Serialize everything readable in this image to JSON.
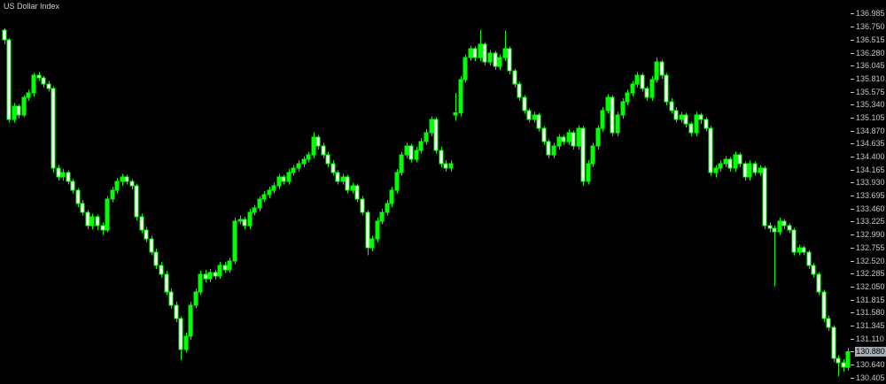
{
  "title": {
    "text": "US Dollar Index"
  },
  "colors": {
    "background": "#000000",
    "bull_candle": "#00FF00",
    "bear_candle": "#FFFFFF",
    "wick": "#00FF00",
    "axis_text": "#c6c6c6",
    "current_price_box_bg": "#a8aeb5",
    "current_price_box_text": "#000000"
  },
  "price_axis": {
    "labels": [
      "136.985",
      "136.750",
      "136.515",
      "136.280",
      "136.045",
      "135.810",
      "135.575",
      "135.340",
      "135.105",
      "134.870",
      "134.635",
      "134.400",
      "134.165",
      "133.930",
      "133.695",
      "133.460",
      "133.225",
      "132.990",
      "132.755",
      "132.520",
      "132.285",
      "132.050",
      "131.815",
      "131.580",
      "131.345",
      "131.110",
      "130.875",
      "130.640",
      "130.405"
    ],
    "current_price": "130.880"
  },
  "chart_data": {
    "type": "candlestick",
    "title": "US Dollar Index",
    "xlabel": "",
    "ylabel": "",
    "grid": false,
    "legend": false,
    "ylim": [
      130.296,
      137.24
    ],
    "up_color": "#00FF00",
    "down_color": "#FFFFFF",
    "candles": [
      [
        136.7,
        136.73,
        136.44,
        136.52
      ],
      [
        136.52,
        136.55,
        135.02,
        135.08
      ],
      [
        135.08,
        135.38,
        135.02,
        135.32
      ],
      [
        135.32,
        135.36,
        135.1,
        135.16
      ],
      [
        135.16,
        135.52,
        135.12,
        135.48
      ],
      [
        135.48,
        135.62,
        135.42,
        135.56
      ],
      [
        135.56,
        135.92,
        135.5,
        135.88
      ],
      [
        135.88,
        135.94,
        135.78,
        135.83
      ],
      [
        135.83,
        135.86,
        135.66,
        135.72
      ],
      [
        135.72,
        135.78,
        135.58,
        135.64
      ],
      [
        135.64,
        135.68,
        134.12,
        134.2
      ],
      [
        134.2,
        134.26,
        133.98,
        134.04
      ],
      [
        134.04,
        134.18,
        133.97,
        134.12
      ],
      [
        134.12,
        134.16,
        133.9,
        133.96
      ],
      [
        133.96,
        134.0,
        133.74,
        133.8
      ],
      [
        133.8,
        133.84,
        133.5,
        133.56
      ],
      [
        133.56,
        133.62,
        133.34,
        133.4
      ],
      [
        133.4,
        133.45,
        133.1,
        133.16
      ],
      [
        133.16,
        133.38,
        133.1,
        133.32
      ],
      [
        133.32,
        133.36,
        133.08,
        133.16
      ],
      [
        133.16,
        133.22,
        133.0,
        133.08
      ],
      [
        133.08,
        133.7,
        133.04,
        133.64
      ],
      [
        133.64,
        133.86,
        133.58,
        133.8
      ],
      [
        133.8,
        134.02,
        133.74,
        133.96
      ],
      [
        133.96,
        134.1,
        133.88,
        134.04
      ],
      [
        134.04,
        134.08,
        133.9,
        133.96
      ],
      [
        133.96,
        134.0,
        133.82,
        133.88
      ],
      [
        133.88,
        133.92,
        133.26,
        133.32
      ],
      [
        133.32,
        133.38,
        133.02,
        133.08
      ],
      [
        133.08,
        133.14,
        132.86,
        132.92
      ],
      [
        132.92,
        132.98,
        132.62,
        132.68
      ],
      [
        132.68,
        132.74,
        132.38,
        132.44
      ],
      [
        132.44,
        132.5,
        132.22,
        132.28
      ],
      [
        132.28,
        132.34,
        131.9,
        131.96
      ],
      [
        131.96,
        132.02,
        131.66,
        131.72
      ],
      [
        131.72,
        131.78,
        131.42,
        131.48
      ],
      [
        131.48,
        131.52,
        130.73,
        130.92
      ],
      [
        130.92,
        131.22,
        130.86,
        131.16
      ],
      [
        131.16,
        131.78,
        131.1,
        131.72
      ],
      [
        131.72,
        132.02,
        131.66,
        131.96
      ],
      [
        131.96,
        132.34,
        131.9,
        132.28
      ],
      [
        132.28,
        132.36,
        132.14,
        132.2
      ],
      [
        132.2,
        132.38,
        132.14,
        132.31
      ],
      [
        132.31,
        132.36,
        132.18,
        132.25
      ],
      [
        132.25,
        132.5,
        132.2,
        132.44
      ],
      [
        132.44,
        132.5,
        132.3,
        132.36
      ],
      [
        132.36,
        132.58,
        132.3,
        132.52
      ],
      [
        132.52,
        133.3,
        132.46,
        133.24
      ],
      [
        133.24,
        133.34,
        133.18,
        133.27
      ],
      [
        133.27,
        133.32,
        133.1,
        133.16
      ],
      [
        133.16,
        133.46,
        133.1,
        133.4
      ],
      [
        133.4,
        133.54,
        133.34,
        133.48
      ],
      [
        133.48,
        133.7,
        133.42,
        133.64
      ],
      [
        133.64,
        133.78,
        133.58,
        133.72
      ],
      [
        133.72,
        133.86,
        133.66,
        133.8
      ],
      [
        133.8,
        133.94,
        133.74,
        133.88
      ],
      [
        133.88,
        134.1,
        133.82,
        134.04
      ],
      [
        134.04,
        134.08,
        133.9,
        133.96
      ],
      [
        133.96,
        134.18,
        133.9,
        134.12
      ],
      [
        134.12,
        134.26,
        134.06,
        134.2
      ],
      [
        134.2,
        134.34,
        134.14,
        134.28
      ],
      [
        134.28,
        134.42,
        134.22,
        134.36
      ],
      [
        134.36,
        134.5,
        134.3,
        134.44
      ],
      [
        134.44,
        134.85,
        134.38,
        134.76
      ],
      [
        134.76,
        134.8,
        134.54,
        134.6
      ],
      [
        134.6,
        134.66,
        134.38,
        134.44
      ],
      [
        134.44,
        134.5,
        134.22,
        134.28
      ],
      [
        134.28,
        134.34,
        134.06,
        134.12
      ],
      [
        134.12,
        134.16,
        133.9,
        133.96
      ],
      [
        133.96,
        134.1,
        133.9,
        134.04
      ],
      [
        134.04,
        134.08,
        133.74,
        133.8
      ],
      [
        133.8,
        133.94,
        133.74,
        133.88
      ],
      [
        133.88,
        133.92,
        133.58,
        133.64
      ],
      [
        133.64,
        133.7,
        133.34,
        133.4
      ],
      [
        133.4,
        133.44,
        132.62,
        132.76
      ],
      [
        132.76,
        132.98,
        132.7,
        132.92
      ],
      [
        132.92,
        133.3,
        132.86,
        133.24
      ],
      [
        133.24,
        133.46,
        133.18,
        133.4
      ],
      [
        133.4,
        133.62,
        133.34,
        133.56
      ],
      [
        133.56,
        133.86,
        133.5,
        133.8
      ],
      [
        133.8,
        134.18,
        133.74,
        134.12
      ],
      [
        134.12,
        134.5,
        134.06,
        134.44
      ],
      [
        134.44,
        134.66,
        134.38,
        134.6
      ],
      [
        134.6,
        134.64,
        134.3,
        134.36
      ],
      [
        134.36,
        134.58,
        134.3,
        134.52
      ],
      [
        134.52,
        134.74,
        134.46,
        134.68
      ],
      [
        134.68,
        134.9,
        134.62,
        134.84
      ],
      [
        134.84,
        135.14,
        134.78,
        135.08
      ],
      [
        135.08,
        135.12,
        134.46,
        134.52
      ],
      [
        134.52,
        134.58,
        134.22,
        134.28
      ],
      [
        134.28,
        134.34,
        134.14,
        134.2
      ],
      [
        134.2,
        134.34,
        134.14,
        134.28
      ],
      [
        135.16,
        135.56,
        135.06,
        135.2
      ],
      [
        135.2,
        135.86,
        135.14,
        135.8
      ],
      [
        135.8,
        136.26,
        135.74,
        136.2
      ],
      [
        136.2,
        136.42,
        136.14,
        136.36
      ],
      [
        136.36,
        136.4,
        136.14,
        136.2
      ],
      [
        136.2,
        136.7,
        136.14,
        136.44
      ],
      [
        136.44,
        136.48,
        136.06,
        136.12
      ],
      [
        136.12,
        136.34,
        136.06,
        136.28
      ],
      [
        136.28,
        136.32,
        135.98,
        136.04
      ],
      [
        136.04,
        136.26,
        135.98,
        136.2
      ],
      [
        136.2,
        136.68,
        136.14,
        136.36
      ],
      [
        136.36,
        136.4,
        135.9,
        135.96
      ],
      [
        135.96,
        136.0,
        135.66,
        135.72
      ],
      [
        135.72,
        135.76,
        135.42,
        135.48
      ],
      [
        135.48,
        135.52,
        135.18,
        135.24
      ],
      [
        135.24,
        135.28,
        135.02,
        135.08
      ],
      [
        135.08,
        135.22,
        135.02,
        135.16
      ],
      [
        135.16,
        135.2,
        134.86,
        134.92
      ],
      [
        134.92,
        134.96,
        134.62,
        134.68
      ],
      [
        134.68,
        134.72,
        134.38,
        134.44
      ],
      [
        134.44,
        134.66,
        134.38,
        134.6
      ],
      [
        134.6,
        134.82,
        134.54,
        134.76
      ],
      [
        134.76,
        134.8,
        134.62,
        134.68
      ],
      [
        134.68,
        134.9,
        134.62,
        134.84
      ],
      [
        134.84,
        134.88,
        134.54,
        134.6
      ],
      [
        134.6,
        134.98,
        134.54,
        134.92
      ],
      [
        134.92,
        134.96,
        133.88,
        133.96
      ],
      [
        133.96,
        134.34,
        133.9,
        134.28
      ],
      [
        134.28,
        134.66,
        134.22,
        134.6
      ],
      [
        134.6,
        134.98,
        134.54,
        134.92
      ],
      [
        134.92,
        135.3,
        134.86,
        135.24
      ],
      [
        135.24,
        135.54,
        135.18,
        135.48
      ],
      [
        135.48,
        135.52,
        134.78,
        134.84
      ],
      [
        134.84,
        135.22,
        134.78,
        135.16
      ],
      [
        135.16,
        135.46,
        135.1,
        135.4
      ],
      [
        135.4,
        135.62,
        135.34,
        135.56
      ],
      [
        135.56,
        135.78,
        135.5,
        135.72
      ],
      [
        135.72,
        135.94,
        135.66,
        135.88
      ],
      [
        135.88,
        135.92,
        135.58,
        135.64
      ],
      [
        135.64,
        135.68,
        135.42,
        135.48
      ],
      [
        135.48,
        135.86,
        135.42,
        135.8
      ],
      [
        135.8,
        136.2,
        135.74,
        136.12
      ],
      [
        136.12,
        136.16,
        135.82,
        135.88
      ],
      [
        135.88,
        135.92,
        135.34,
        135.4
      ],
      [
        135.4,
        135.46,
        135.18,
        135.24
      ],
      [
        135.24,
        135.3,
        135.02,
        135.08
      ],
      [
        135.08,
        135.22,
        135.02,
        135.16
      ],
      [
        135.16,
        135.2,
        134.94,
        135.0
      ],
      [
        135.0,
        135.04,
        134.78,
        134.84
      ],
      [
        134.84,
        135.22,
        134.78,
        135.16
      ],
      [
        135.16,
        135.2,
        135.0,
        135.08
      ],
      [
        135.08,
        135.12,
        134.86,
        134.92
      ],
      [
        134.92,
        134.96,
        134.06,
        134.12
      ],
      [
        134.12,
        134.26,
        134.03,
        134.2
      ],
      [
        134.2,
        134.34,
        134.14,
        134.28
      ],
      [
        134.28,
        134.42,
        134.22,
        134.36
      ],
      [
        134.36,
        134.4,
        134.14,
        134.2
      ],
      [
        134.2,
        134.5,
        134.14,
        134.44
      ],
      [
        134.44,
        134.48,
        134.22,
        134.28
      ],
      [
        134.28,
        134.32,
        133.98,
        134.04
      ],
      [
        134.04,
        134.34,
        133.98,
        134.28
      ],
      [
        134.28,
        134.32,
        134.06,
        134.12
      ],
      [
        134.12,
        134.26,
        134.06,
        134.2
      ],
      [
        134.2,
        134.24,
        133.1,
        133.16
      ],
      [
        133.16,
        133.22,
        133.04,
        133.11
      ],
      [
        133.11,
        133.16,
        132.06,
        133.05
      ],
      [
        133.05,
        133.3,
        132.99,
        133.24
      ],
      [
        133.24,
        133.28,
        133.1,
        133.16
      ],
      [
        133.16,
        133.2,
        133.02,
        133.08
      ],
      [
        133.08,
        133.12,
        132.62,
        132.68
      ],
      [
        132.68,
        132.82,
        132.62,
        132.76
      ],
      [
        132.76,
        132.8,
        132.62,
        132.68
      ],
      [
        132.68,
        132.72,
        132.38,
        132.44
      ],
      [
        132.44,
        132.48,
        132.22,
        132.28
      ],
      [
        132.28,
        132.32,
        131.9,
        131.96
      ],
      [
        131.96,
        132.0,
        131.42,
        131.48
      ],
      [
        131.48,
        131.54,
        131.26,
        131.32
      ],
      [
        131.32,
        131.36,
        130.7,
        130.76
      ],
      [
        130.76,
        130.82,
        130.44,
        130.68
      ],
      [
        130.68,
        130.74,
        130.52,
        130.6
      ],
      [
        130.6,
        130.94,
        130.54,
        130.88
      ]
    ]
  }
}
